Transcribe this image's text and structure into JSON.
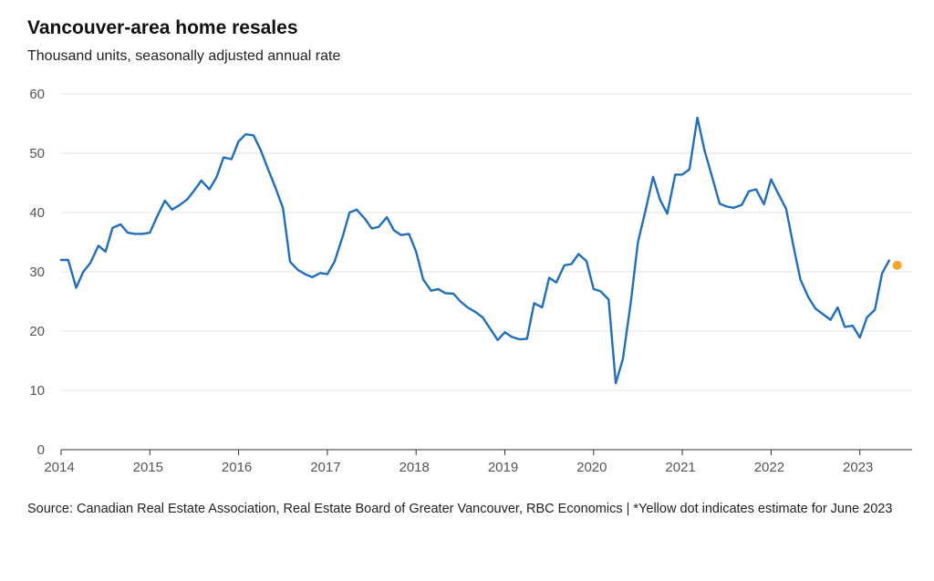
{
  "chart_data": {
    "type": "line",
    "title": "Vancouver-area home resales",
    "subtitle": "Thousand units, seasonally adjusted annual rate",
    "xlabel": "",
    "ylabel": "",
    "ylim": [
      0,
      60
    ],
    "yticks": [
      0,
      10,
      20,
      30,
      40,
      50,
      60
    ],
    "xlim": [
      2014,
      2023.75
    ],
    "xticks": [
      2014,
      2015,
      2016,
      2017,
      2018,
      2019,
      2020,
      2021,
      2022,
      2023
    ],
    "grid": true,
    "line_color": "#1f6fbf",
    "estimate_color": "#f5a623",
    "series": [
      {
        "values": [
          [
            2014.0,
            32.0
          ],
          [
            2014.08,
            32.0
          ],
          [
            2014.17,
            27.3
          ],
          [
            2014.25,
            30.0
          ],
          [
            2014.33,
            31.5
          ],
          [
            2014.42,
            34.4
          ],
          [
            2014.5,
            33.4
          ],
          [
            2014.58,
            37.4
          ],
          [
            2014.67,
            38.0
          ],
          [
            2014.75,
            36.6
          ],
          [
            2014.83,
            36.4
          ],
          [
            2014.92,
            36.4
          ],
          [
            2015.0,
            36.6
          ],
          [
            2015.08,
            39.3
          ],
          [
            2015.17,
            42.0
          ],
          [
            2015.25,
            40.5
          ],
          [
            2015.33,
            41.2
          ],
          [
            2015.42,
            42.2
          ],
          [
            2015.5,
            43.7
          ],
          [
            2015.58,
            45.4
          ],
          [
            2015.67,
            43.9
          ],
          [
            2015.75,
            45.9
          ],
          [
            2015.83,
            49.3
          ],
          [
            2015.92,
            49.0
          ],
          [
            2016.0,
            52.0
          ],
          [
            2016.08,
            53.2
          ],
          [
            2016.17,
            53.0
          ],
          [
            2016.25,
            50.5
          ],
          [
            2016.33,
            47.4
          ],
          [
            2016.42,
            44.0
          ],
          [
            2016.5,
            40.7
          ],
          [
            2016.58,
            31.7
          ],
          [
            2016.67,
            30.3
          ],
          [
            2016.75,
            29.6
          ],
          [
            2016.83,
            29.1
          ],
          [
            2016.92,
            29.8
          ],
          [
            2017.0,
            29.6
          ],
          [
            2017.08,
            31.7
          ],
          [
            2017.17,
            35.8
          ],
          [
            2017.25,
            40.0
          ],
          [
            2017.33,
            40.5
          ],
          [
            2017.42,
            39.0
          ],
          [
            2017.5,
            37.3
          ],
          [
            2017.58,
            37.6
          ],
          [
            2017.67,
            39.2
          ],
          [
            2017.75,
            37.0
          ],
          [
            2017.83,
            36.2
          ],
          [
            2017.92,
            36.4
          ],
          [
            2018.0,
            33.4
          ],
          [
            2018.08,
            28.7
          ],
          [
            2018.17,
            26.8
          ],
          [
            2018.25,
            27.1
          ],
          [
            2018.33,
            26.4
          ],
          [
            2018.42,
            26.3
          ],
          [
            2018.5,
            25.0
          ],
          [
            2018.58,
            24.0
          ],
          [
            2018.67,
            23.2
          ],
          [
            2018.75,
            22.3
          ],
          [
            2018.83,
            20.5
          ],
          [
            2018.92,
            18.5
          ],
          [
            2019.0,
            19.8
          ],
          [
            2019.08,
            19.0
          ],
          [
            2019.17,
            18.6
          ],
          [
            2019.25,
            18.7
          ],
          [
            2019.33,
            24.7
          ],
          [
            2019.42,
            24.0
          ],
          [
            2019.5,
            29.0
          ],
          [
            2019.58,
            28.2
          ],
          [
            2019.67,
            31.1
          ],
          [
            2019.75,
            31.3
          ],
          [
            2019.83,
            33.0
          ],
          [
            2019.92,
            31.8
          ],
          [
            2020.0,
            27.1
          ],
          [
            2020.08,
            26.7
          ],
          [
            2020.17,
            25.3
          ],
          [
            2020.25,
            11.2
          ],
          [
            2020.33,
            15.3
          ],
          [
            2020.42,
            25.0
          ],
          [
            2020.5,
            35.0
          ],
          [
            2020.58,
            40.0
          ],
          [
            2020.67,
            46.0
          ],
          [
            2020.75,
            42.1
          ],
          [
            2020.83,
            39.8
          ],
          [
            2020.92,
            46.4
          ],
          [
            2021.0,
            46.4
          ],
          [
            2021.08,
            47.3
          ],
          [
            2021.17,
            56.0
          ],
          [
            2021.25,
            50.5
          ],
          [
            2021.33,
            46.3
          ],
          [
            2021.42,
            41.5
          ],
          [
            2021.5,
            41.0
          ],
          [
            2021.58,
            40.8
          ],
          [
            2021.67,
            41.3
          ],
          [
            2021.75,
            43.6
          ],
          [
            2021.83,
            43.9
          ],
          [
            2021.92,
            41.4
          ],
          [
            2022.0,
            45.6
          ],
          [
            2022.08,
            43.2
          ],
          [
            2022.17,
            40.6
          ],
          [
            2022.25,
            34.5
          ],
          [
            2022.33,
            28.7
          ],
          [
            2022.42,
            25.7
          ],
          [
            2022.5,
            23.8
          ],
          [
            2022.58,
            22.9
          ],
          [
            2022.67,
            21.9
          ],
          [
            2022.75,
            24.0
          ],
          [
            2022.83,
            20.7
          ],
          [
            2022.92,
            20.9
          ],
          [
            2023.0,
            18.9
          ],
          [
            2023.08,
            22.3
          ],
          [
            2023.17,
            23.6
          ],
          [
            2023.25,
            29.7
          ],
          [
            2023.33,
            31.9
          ]
        ]
      }
    ],
    "estimate": {
      "x": 2023.42,
      "y": 31.1
    }
  },
  "source": "Source: Canadian Real Estate Association, Real Estate Board of Greater Vancouver, RBC Economics | *Yellow dot indicates estimate for June 2023"
}
